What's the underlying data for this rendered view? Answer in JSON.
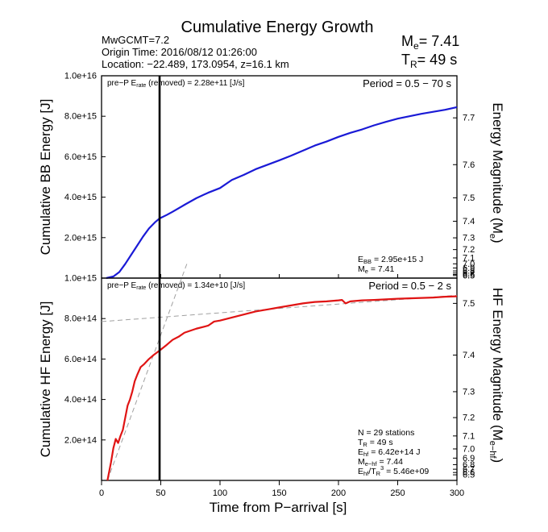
{
  "header": {
    "title": "Cumulative Energy Growth",
    "info_lines": [
      "MwGCMT=7.2",
      "Origin Time: 2016/08/12 01:26:00",
      "Location: −22.489, 173.0954, z=16.1 km"
    ],
    "me_label": "M",
    "me_sub": "e",
    "me_value": "= 7.41",
    "tr_label": "T",
    "tr_sub": "R",
    "tr_value": "= 49 s"
  },
  "xaxis": {
    "label": "Time from P−arrival [s]",
    "range": [
      0,
      300
    ],
    "ticks": [
      0,
      50,
      100,
      150,
      200,
      250,
      300
    ]
  },
  "chart_data": [
    {
      "type": "line",
      "panel": "broadband",
      "ylabel": "Cumulative BB Energy [J]",
      "y2label_main": "Energy Magnitude (M",
      "y2label_sub": "e",
      "y2label_end": ")",
      "ylim": [
        0,
        1e+16
      ],
      "yticks": [
        {
          "v": 2000000000000000.0,
          "t": "2.0e+15"
        },
        {
          "v": 4000000000000000.0,
          "t": "4.0e+15"
        },
        {
          "v": 6000000000000000.0,
          "t": "6.0e+15"
        },
        {
          "v": 8000000000000000.0,
          "t": "8.0e+15"
        },
        {
          "v": 1e+16,
          "t": "1.0e+16"
        }
      ],
      "mag_ticks": [
        "6.5",
        "6.6",
        "6.7",
        "6.8",
        "6.9",
        "7.0",
        "7.1",
        "7.2",
        "7.3",
        "7.4",
        "7.5",
        "7.6",
        "7.7"
      ],
      "annotation_left_pre": "pre−P E",
      "annotation_left_sub": "rate",
      "annotation_left_post": " (removed) = 2.28e+11 [J/s]",
      "period": "Period = 0.5 − 70 s",
      "stats": [
        {
          "pre": "E",
          "sub": "BB",
          "post": " = 2.95e+15 J"
        },
        {
          "pre": "M",
          "sub": "e",
          "post": " = 7.41"
        }
      ],
      "tr_line_x": 49,
      "series": [
        {
          "color": "#1a1ad6",
          "x": [
            4,
            10,
            15,
            20,
            25,
            30,
            35,
            40,
            45,
            49,
            55,
            60,
            70,
            80,
            90,
            100,
            110,
            120,
            130,
            140,
            150,
            160,
            170,
            180,
            190,
            200,
            210,
            220,
            230,
            240,
            250,
            260,
            270,
            280,
            290,
            300
          ],
          "y": [
            0,
            80000000000000.0,
            300000000000000.0,
            700000000000000.0,
            1150000000000000.0,
            1600000000000000.0,
            2050000000000000.0,
            2450000000000000.0,
            2750000000000000.0,
            2950000000000000.0,
            3120000000000000.0,
            3280000000000000.0,
            3620000000000000.0,
            3950000000000000.0,
            4220000000000000.0,
            4450000000000000.0,
            4850000000000000.0,
            5100000000000000.0,
            5380000000000000.0,
            5600000000000000.0,
            5820000000000000.0,
            6050000000000000.0,
            6300000000000000.0,
            6550000000000000.0,
            6750000000000000.0,
            6980000000000000.0,
            7180000000000000.0,
            7350000000000000.0,
            7550000000000000.0,
            7720000000000000.0,
            7880000000000000.0,
            8000000000000000.0,
            8120000000000000.0,
            8220000000000000.0,
            8320000000000000.0,
            8450000000000000.0
          ]
        }
      ]
    },
    {
      "type": "line",
      "panel": "high-frequency",
      "ylabel": "Cumulative HF Energy [J]",
      "y2label_main": "HF Energy Magnitude (M",
      "y2label_sub": "e−hf",
      "y2label_end": ")",
      "ylim": [
        0,
        1000000000000000.0
      ],
      "yticks": [
        {
          "v": 200000000000000.0,
          "t": "2.0e+14"
        },
        {
          "v": 400000000000000.0,
          "t": "4.0e+14"
        },
        {
          "v": 600000000000000.0,
          "t": "6.0e+14"
        },
        {
          "v": 800000000000000.0,
          "t": "8.0e+14"
        },
        {
          "v": 1000000000000000.0,
          "t": "1.0e+15"
        }
      ],
      "mag_ticks": [
        "6.5",
        "6.6",
        "6.7",
        "6.8",
        "6.9",
        "7.0",
        "7.1",
        "7.2",
        "7.3",
        "7.4",
        "7.5"
      ],
      "annotation_left_pre": "pre−P E",
      "annotation_left_sub": "rate",
      "annotation_left_post": " (removed) = 1.34e+10 [J/s]",
      "period": "Period = 0.5 − 2 s",
      "stats": [
        {
          "pre": "N = 29 stations",
          "sub": "",
          "post": ""
        },
        {
          "pre": "T",
          "sub": "R",
          "post": " = 49  s"
        },
        {
          "pre": "E",
          "sub": "hf",
          "post": " = 6.42e+14 J"
        },
        {
          "pre": "M",
          "sub": "e−hf",
          "post": " = 7.44"
        },
        {
          "pre": "E",
          "sub": "hf",
          "post": "/T",
          "sub2": "R",
          "sup": "3",
          "post2": " =  5.46e+09"
        }
      ],
      "tr_line_x": 49,
      "series": [
        {
          "color": "#e01414",
          "x": [
            5,
            8,
            10,
            12,
            14,
            16,
            18,
            20,
            22,
            24,
            26,
            28,
            30,
            33,
            36,
            40,
            44,
            49,
            55,
            60,
            65,
            70,
            80,
            90,
            95,
            100,
            110,
            120,
            130,
            140,
            150,
            160,
            170,
            180,
            190,
            200,
            203,
            206,
            210,
            220,
            230,
            240,
            250,
            260,
            270,
            280,
            290,
            300
          ],
          "y": [
            0,
            90000000000000.0,
            160000000000000.0,
            205000000000000.0,
            185000000000000.0,
            220000000000000.0,
            250000000000000.0,
            310000000000000.0,
            370000000000000.0,
            400000000000000.0,
            440000000000000.0,
            490000000000000.0,
            520000000000000.0,
            560000000000000.0,
            575000000000000.0,
            600000000000000.0,
            620000000000000.0,
            642000000000000.0,
            670000000000000.0,
            695000000000000.0,
            710000000000000.0,
            730000000000000.0,
            750000000000000.0,
            765000000000000.0,
            785000000000000.0,
            790000000000000.0,
            805000000000000.0,
            820000000000000.0,
            835000000000000.0,
            845000000000000.0,
            855000000000000.0,
            865000000000000.0,
            875000000000000.0,
            882000000000000.0,
            885000000000000.0,
            890000000000000.0,
            892000000000000.0,
            875000000000000.0,
            885000000000000.0,
            890000000000000.0,
            892000000000000.0,
            895000000000000.0,
            898000000000000.0,
            900000000000000.0,
            902000000000000.0,
            904000000000000.0,
            908000000000000.0,
            910000000000000.0
          ]
        }
      ],
      "fit_lines": [
        {
          "color": "#a0a0a0",
          "x": [
            0,
            300
          ],
          "y": [
            785000000000000.0,
            915000000000000.0
          ]
        },
        {
          "color": "#a0a0a0",
          "x": [
            5,
            72
          ],
          "y": [
            0,
            1070000000000000.0
          ]
        }
      ]
    }
  ]
}
